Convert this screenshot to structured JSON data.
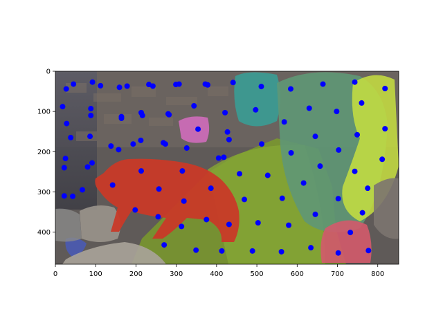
{
  "figure": {
    "image_content": "bear walking past rocks with segmentation overlays and point prompts"
  },
  "chart_data": {
    "type": "scatter",
    "title": "",
    "xlabel": "",
    "ylabel": "",
    "xlim": [
      0,
      852
    ],
    "ylim": [
      480,
      0
    ],
    "x_ticks": [
      0,
      100,
      200,
      300,
      400,
      500,
      600,
      700,
      800
    ],
    "y_ticks": [
      0,
      100,
      200,
      300,
      400
    ],
    "marker_color": "#0000ff",
    "overlays": [
      {
        "label": "bear",
        "color": "#c83a28"
      },
      {
        "label": "grass",
        "color": "#7a9a2c"
      },
      {
        "label": "teal rock",
        "color": "#3a9c95"
      },
      {
        "label": "green rock",
        "color": "#5f9775"
      },
      {
        "label": "pink rock",
        "color": "#d06bbb"
      },
      {
        "label": "red rock",
        "color": "#d35a6b"
      },
      {
        "label": "yellow foliage",
        "color": "#c7df3f"
      },
      {
        "label": "blue rock",
        "color": "#4a5ab4"
      }
    ],
    "series": [
      {
        "points": [
          [
            27,
            44
          ],
          [
            45,
            32
          ],
          [
            92,
            27
          ],
          [
            112,
            36
          ],
          [
            159,
            40
          ],
          [
            178,
            37
          ],
          [
            232,
            33
          ],
          [
            242,
            37
          ],
          [
            299,
            33
          ],
          [
            307,
            32
          ],
          [
            372,
            32
          ],
          [
            378,
            34
          ],
          [
            441,
            28
          ],
          [
            511,
            38
          ],
          [
            584,
            44
          ],
          [
            664,
            32
          ],
          [
            743,
            27
          ],
          [
            818,
            43
          ],
          [
            18,
            88
          ],
          [
            88,
            93
          ],
          [
            164,
            117
          ],
          [
            213,
            103
          ],
          [
            280,
            106
          ],
          [
            344,
            86
          ],
          [
            421,
            103
          ],
          [
            497,
            96
          ],
          [
            630,
            92
          ],
          [
            698,
            100
          ],
          [
            760,
            79
          ],
          [
            28,
            130
          ],
          [
            88,
            110
          ],
          [
            164,
            113
          ],
          [
            216,
            110
          ],
          [
            282,
            108
          ],
          [
            354,
            144
          ],
          [
            427,
            151
          ],
          [
            568,
            126
          ],
          [
            38,
            165
          ],
          [
            86,
            162
          ],
          [
            138,
            186
          ],
          [
            157,
            195
          ],
          [
            193,
            181
          ],
          [
            212,
            172
          ],
          [
            268,
            178
          ],
          [
            273,
            181
          ],
          [
            326,
            191
          ],
          [
            431,
            170
          ],
          [
            512,
            181
          ],
          [
            585,
            203
          ],
          [
            645,
            162
          ],
          [
            703,
            196
          ],
          [
            749,
            158
          ],
          [
            818,
            143
          ],
          [
            25,
            217
          ],
          [
            22,
            240
          ],
          [
            80,
            238
          ],
          [
            91,
            228
          ],
          [
            142,
            283
          ],
          [
            213,
            248
          ],
          [
            315,
            248
          ],
          [
            405,
            216
          ],
          [
            418,
            214
          ],
          [
            457,
            255
          ],
          [
            527,
            259
          ],
          [
            616,
            278
          ],
          [
            657,
            236
          ],
          [
            743,
            249
          ],
          [
            811,
            219
          ],
          [
            22,
            310
          ],
          [
            43,
            311
          ],
          [
            67,
            295
          ],
          [
            198,
            345
          ],
          [
            257,
            293
          ],
          [
            255,
            362
          ],
          [
            319,
            323
          ],
          [
            313,
            386
          ],
          [
            270,
            432
          ],
          [
            349,
            445
          ],
          [
            375,
            369
          ],
          [
            386,
            291
          ],
          [
            431,
            381
          ],
          [
            469,
            319
          ],
          [
            503,
            377
          ],
          [
            563,
            316
          ],
          [
            579,
            383
          ],
          [
            645,
            356
          ],
          [
            702,
            317
          ],
          [
            732,
            401
          ],
          [
            762,
            352
          ],
          [
            775,
            291
          ],
          [
            777,
            446
          ],
          [
            413,
            447
          ],
          [
            489,
            447
          ],
          [
            561,
            449
          ],
          [
            634,
            439
          ],
          [
            702,
            452
          ]
        ]
      }
    ]
  }
}
